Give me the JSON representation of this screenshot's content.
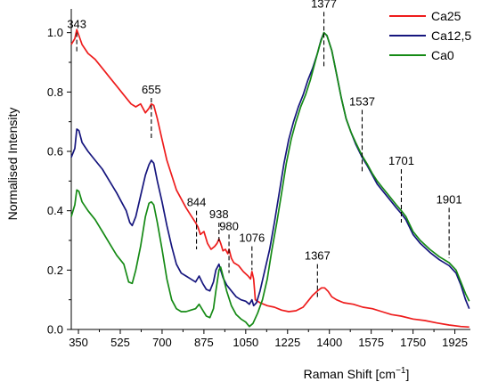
{
  "chart_data": {
    "type": "line",
    "xlabel": "Raman Shift [cm",
    "xlabel_sup": "−1",
    "xlabel_suffix": "]",
    "ylabel": "Normalised Intensity",
    "xlim": [
      320,
      1990
    ],
    "ylim": [
      0.0,
      1.08
    ],
    "xticks": [
      350,
      525,
      700,
      875,
      1050,
      1225,
      1400,
      1575,
      1750,
      1925
    ],
    "yticks": [
      0.0,
      0.2,
      0.4,
      0.6,
      0.8,
      1.0
    ],
    "ytick_labels": [
      "0.0",
      "0.2",
      "0.4",
      "0.6",
      "0.8",
      "1.0"
    ],
    "grid": false,
    "legend_position": "top-right",
    "series": [
      {
        "name": "Ca25",
        "color": "#ee1c1c",
        "points": [
          [
            320,
            0.96
          ],
          [
            335,
            0.98
          ],
          [
            343,
            1.01
          ],
          [
            352,
            0.99
          ],
          [
            365,
            0.96
          ],
          [
            390,
            0.93
          ],
          [
            420,
            0.91
          ],
          [
            450,
            0.88
          ],
          [
            480,
            0.85
          ],
          [
            510,
            0.82
          ],
          [
            540,
            0.79
          ],
          [
            570,
            0.76
          ],
          [
            590,
            0.75
          ],
          [
            610,
            0.76
          ],
          [
            630,
            0.73
          ],
          [
            645,
            0.745
          ],
          [
            655,
            0.76
          ],
          [
            665,
            0.755
          ],
          [
            680,
            0.71
          ],
          [
            700,
            0.64
          ],
          [
            720,
            0.57
          ],
          [
            740,
            0.52
          ],
          [
            760,
            0.47
          ],
          [
            780,
            0.44
          ],
          [
            800,
            0.41
          ],
          [
            820,
            0.385
          ],
          [
            840,
            0.36
          ],
          [
            850,
            0.345
          ],
          [
            860,
            0.32
          ],
          [
            875,
            0.33
          ],
          [
            890,
            0.29
          ],
          [
            905,
            0.27
          ],
          [
            920,
            0.28
          ],
          [
            930,
            0.29
          ],
          [
            938,
            0.305
          ],
          [
            945,
            0.29
          ],
          [
            955,
            0.265
          ],
          [
            965,
            0.27
          ],
          [
            975,
            0.255
          ],
          [
            980,
            0.27
          ],
          [
            990,
            0.24
          ],
          [
            1000,
            0.225
          ],
          [
            1020,
            0.215
          ],
          [
            1040,
            0.195
          ],
          [
            1060,
            0.18
          ],
          [
            1070,
            0.17
          ],
          [
            1076,
            0.195
          ],
          [
            1083,
            0.17
          ],
          [
            1090,
            0.1
          ],
          [
            1110,
            0.09
          ],
          [
            1140,
            0.08
          ],
          [
            1170,
            0.075
          ],
          [
            1200,
            0.065
          ],
          [
            1230,
            0.06
          ],
          [
            1260,
            0.063
          ],
          [
            1290,
            0.075
          ],
          [
            1310,
            0.095
          ],
          [
            1330,
            0.115
          ],
          [
            1350,
            0.13
          ],
          [
            1367,
            0.14
          ],
          [
            1380,
            0.14
          ],
          [
            1395,
            0.128
          ],
          [
            1410,
            0.11
          ],
          [
            1430,
            0.1
          ],
          [
            1460,
            0.09
          ],
          [
            1500,
            0.085
          ],
          [
            1540,
            0.075
          ],
          [
            1580,
            0.07
          ],
          [
            1620,
            0.06
          ],
          [
            1660,
            0.05
          ],
          [
            1700,
            0.045
          ],
          [
            1750,
            0.035
          ],
          [
            1800,
            0.03
          ],
          [
            1850,
            0.022
          ],
          [
            1900,
            0.015
          ],
          [
            1950,
            0.01
          ],
          [
            1985,
            0.008
          ]
        ]
      },
      {
        "name": "Ca12,5",
        "color": "#16167e",
        "points": [
          [
            320,
            0.58
          ],
          [
            335,
            0.61
          ],
          [
            343,
            0.675
          ],
          [
            352,
            0.67
          ],
          [
            365,
            0.63
          ],
          [
            390,
            0.6
          ],
          [
            420,
            0.57
          ],
          [
            450,
            0.54
          ],
          [
            480,
            0.5
          ],
          [
            510,
            0.46
          ],
          [
            530,
            0.43
          ],
          [
            550,
            0.4
          ],
          [
            565,
            0.36
          ],
          [
            575,
            0.35
          ],
          [
            590,
            0.38
          ],
          [
            610,
            0.45
          ],
          [
            630,
            0.52
          ],
          [
            645,
            0.555
          ],
          [
            655,
            0.57
          ],
          [
            665,
            0.56
          ],
          [
            680,
            0.5
          ],
          [
            700,
            0.43
          ],
          [
            720,
            0.35
          ],
          [
            740,
            0.28
          ],
          [
            760,
            0.22
          ],
          [
            780,
            0.19
          ],
          [
            800,
            0.18
          ],
          [
            820,
            0.17
          ],
          [
            840,
            0.16
          ],
          [
            855,
            0.18
          ],
          [
            870,
            0.155
          ],
          [
            885,
            0.135
          ],
          [
            900,
            0.13
          ],
          [
            915,
            0.16
          ],
          [
            925,
            0.2
          ],
          [
            938,
            0.22
          ],
          [
            945,
            0.2
          ],
          [
            955,
            0.175
          ],
          [
            970,
            0.15
          ],
          [
            990,
            0.13
          ],
          [
            1010,
            0.11
          ],
          [
            1030,
            0.1
          ],
          [
            1050,
            0.095
          ],
          [
            1065,
            0.085
          ],
          [
            1076,
            0.1
          ],
          [
            1083,
            0.08
          ],
          [
            1095,
            0.09
          ],
          [
            1110,
            0.13
          ],
          [
            1130,
            0.2
          ],
          [
            1150,
            0.27
          ],
          [
            1170,
            0.36
          ],
          [
            1190,
            0.46
          ],
          [
            1210,
            0.56
          ],
          [
            1230,
            0.64
          ],
          [
            1250,
            0.7
          ],
          [
            1270,
            0.75
          ],
          [
            1290,
            0.79
          ],
          [
            1310,
            0.84
          ],
          [
            1330,
            0.88
          ],
          [
            1350,
            0.93
          ],
          [
            1365,
            0.975
          ],
          [
            1377,
            1.0
          ],
          [
            1390,
            0.99
          ],
          [
            1410,
            0.94
          ],
          [
            1430,
            0.86
          ],
          [
            1450,
            0.78
          ],
          [
            1470,
            0.71
          ],
          [
            1490,
            0.665
          ],
          [
            1510,
            0.625
          ],
          [
            1537,
            0.58
          ],
          [
            1560,
            0.55
          ],
          [
            1580,
            0.52
          ],
          [
            1600,
            0.49
          ],
          [
            1620,
            0.47
          ],
          [
            1650,
            0.44
          ],
          [
            1680,
            0.41
          ],
          [
            1701,
            0.39
          ],
          [
            1720,
            0.37
          ],
          [
            1750,
            0.32
          ],
          [
            1780,
            0.29
          ],
          [
            1820,
            0.26
          ],
          [
            1860,
            0.235
          ],
          [
            1901,
            0.215
          ],
          [
            1930,
            0.19
          ],
          [
            1950,
            0.15
          ],
          [
            1970,
            0.1
          ],
          [
            1985,
            0.07
          ]
        ]
      },
      {
        "name": "Ca0",
        "color": "#158a15",
        "points": [
          [
            320,
            0.38
          ],
          [
            335,
            0.42
          ],
          [
            343,
            0.47
          ],
          [
            352,
            0.465
          ],
          [
            365,
            0.43
          ],
          [
            390,
            0.4
          ],
          [
            420,
            0.37
          ],
          [
            450,
            0.33
          ],
          [
            480,
            0.29
          ],
          [
            510,
            0.25
          ],
          [
            540,
            0.22
          ],
          [
            560,
            0.16
          ],
          [
            575,
            0.155
          ],
          [
            590,
            0.2
          ],
          [
            610,
            0.28
          ],
          [
            630,
            0.38
          ],
          [
            645,
            0.425
          ],
          [
            655,
            0.43
          ],
          [
            665,
            0.42
          ],
          [
            680,
            0.36
          ],
          [
            700,
            0.27
          ],
          [
            720,
            0.17
          ],
          [
            740,
            0.1
          ],
          [
            760,
            0.07
          ],
          [
            780,
            0.06
          ],
          [
            800,
            0.06
          ],
          [
            820,
            0.065
          ],
          [
            840,
            0.07
          ],
          [
            855,
            0.085
          ],
          [
            870,
            0.065
          ],
          [
            885,
            0.045
          ],
          [
            900,
            0.04
          ],
          [
            915,
            0.07
          ],
          [
            925,
            0.13
          ],
          [
            938,
            0.2
          ],
          [
            945,
            0.21
          ],
          [
            955,
            0.18
          ],
          [
            970,
            0.13
          ],
          [
            990,
            0.08
          ],
          [
            1010,
            0.05
          ],
          [
            1030,
            0.035
          ],
          [
            1050,
            0.025
          ],
          [
            1065,
            0.01
          ],
          [
            1080,
            0.02
          ],
          [
            1100,
            0.055
          ],
          [
            1120,
            0.1
          ],
          [
            1140,
            0.17
          ],
          [
            1160,
            0.27
          ],
          [
            1180,
            0.36
          ],
          [
            1200,
            0.46
          ],
          [
            1220,
            0.56
          ],
          [
            1240,
            0.64
          ],
          [
            1260,
            0.7
          ],
          [
            1280,
            0.75
          ],
          [
            1300,
            0.79
          ],
          [
            1320,
            0.84
          ],
          [
            1340,
            0.9
          ],
          [
            1360,
            0.96
          ],
          [
            1377,
            1.0
          ],
          [
            1390,
            0.99
          ],
          [
            1410,
            0.94
          ],
          [
            1430,
            0.86
          ],
          [
            1450,
            0.78
          ],
          [
            1470,
            0.71
          ],
          [
            1490,
            0.665
          ],
          [
            1510,
            0.63
          ],
          [
            1537,
            0.585
          ],
          [
            1560,
            0.555
          ],
          [
            1580,
            0.525
          ],
          [
            1600,
            0.5
          ],
          [
            1620,
            0.48
          ],
          [
            1650,
            0.45
          ],
          [
            1680,
            0.42
          ],
          [
            1701,
            0.4
          ],
          [
            1720,
            0.38
          ],
          [
            1750,
            0.33
          ],
          [
            1780,
            0.3
          ],
          [
            1820,
            0.27
          ],
          [
            1860,
            0.245
          ],
          [
            1901,
            0.225
          ],
          [
            1930,
            0.2
          ],
          [
            1950,
            0.16
          ],
          [
            1970,
            0.12
          ],
          [
            1985,
            0.095
          ]
        ]
      }
    ],
    "annotations": [
      {
        "label": "343",
        "x": 343,
        "y_top": 1.0,
        "y_bottom": 0.93
      },
      {
        "label": "655",
        "x": 655,
        "y_top": 0.78,
        "y_bottom": 0.64
      },
      {
        "label": "844",
        "x": 844,
        "y_top": 0.4,
        "y_bottom": 0.27
      },
      {
        "label": "938",
        "x": 938,
        "y_top": 0.36,
        "y_bottom": 0.29
      },
      {
        "label": "980",
        "x": 980,
        "y_top": 0.32,
        "y_bottom": 0.19
      },
      {
        "label": "1076",
        "x": 1076,
        "y_top": 0.28,
        "y_bottom": 0.2
      },
      {
        "label": "1367",
        "x": 1350,
        "y_top": 0.22,
        "y_bottom": 0.1
      },
      {
        "label": "1377",
        "x": 1377,
        "y_top": 1.07,
        "y_bottom": 0.88
      },
      {
        "label": "1537",
        "x": 1537,
        "y_top": 0.74,
        "y_bottom": 0.53
      },
      {
        "label": "1701",
        "x": 1701,
        "y_top": 0.54,
        "y_bottom": 0.36
      },
      {
        "label": "1901",
        "x": 1901,
        "y_top": 0.41,
        "y_bottom": 0.24
      }
    ]
  }
}
